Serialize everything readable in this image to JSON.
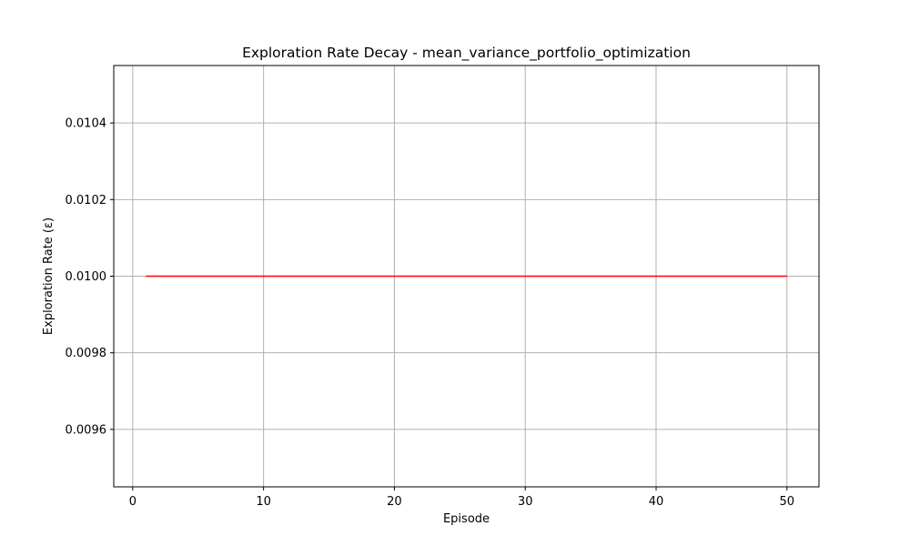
{
  "chart_data": {
    "type": "line",
    "title": "Exploration Rate Decay - mean_variance_portfolio_optimization",
    "xlabel": "Episode",
    "ylabel": "Exploration Rate (ε)",
    "xlim": [
      -1.45,
      52.45
    ],
    "ylim": [
      0.00945,
      0.01055
    ],
    "xticks": [
      0,
      10,
      20,
      30,
      40,
      50
    ],
    "xtick_labels": [
      "0",
      "10",
      "20",
      "30",
      "40",
      "50"
    ],
    "yticks": [
      0.0096,
      0.0098,
      0.01,
      0.0102,
      0.0104
    ],
    "ytick_labels": [
      "0.0096",
      "0.0098",
      "0.0100",
      "0.0102",
      "0.0104"
    ],
    "grid": true,
    "legend": "none",
    "series": [
      {
        "color": "#ff0000",
        "x": [
          1,
          2,
          3,
          4,
          5,
          6,
          7,
          8,
          9,
          10,
          11,
          12,
          13,
          14,
          15,
          16,
          17,
          18,
          19,
          20,
          21,
          22,
          23,
          24,
          25,
          26,
          27,
          28,
          29,
          30,
          31,
          32,
          33,
          34,
          35,
          36,
          37,
          38,
          39,
          40,
          41,
          42,
          43,
          44,
          45,
          46,
          47,
          48,
          49,
          50
        ],
        "y": [
          0.01,
          0.01,
          0.01,
          0.01,
          0.01,
          0.01,
          0.01,
          0.01,
          0.01,
          0.01,
          0.01,
          0.01,
          0.01,
          0.01,
          0.01,
          0.01,
          0.01,
          0.01,
          0.01,
          0.01,
          0.01,
          0.01,
          0.01,
          0.01,
          0.01,
          0.01,
          0.01,
          0.01,
          0.01,
          0.01,
          0.01,
          0.01,
          0.01,
          0.01,
          0.01,
          0.01,
          0.01,
          0.01,
          0.01,
          0.01,
          0.01,
          0.01,
          0.01,
          0.01,
          0.01,
          0.01,
          0.01,
          0.01,
          0.01,
          0.01
        ]
      }
    ]
  }
}
